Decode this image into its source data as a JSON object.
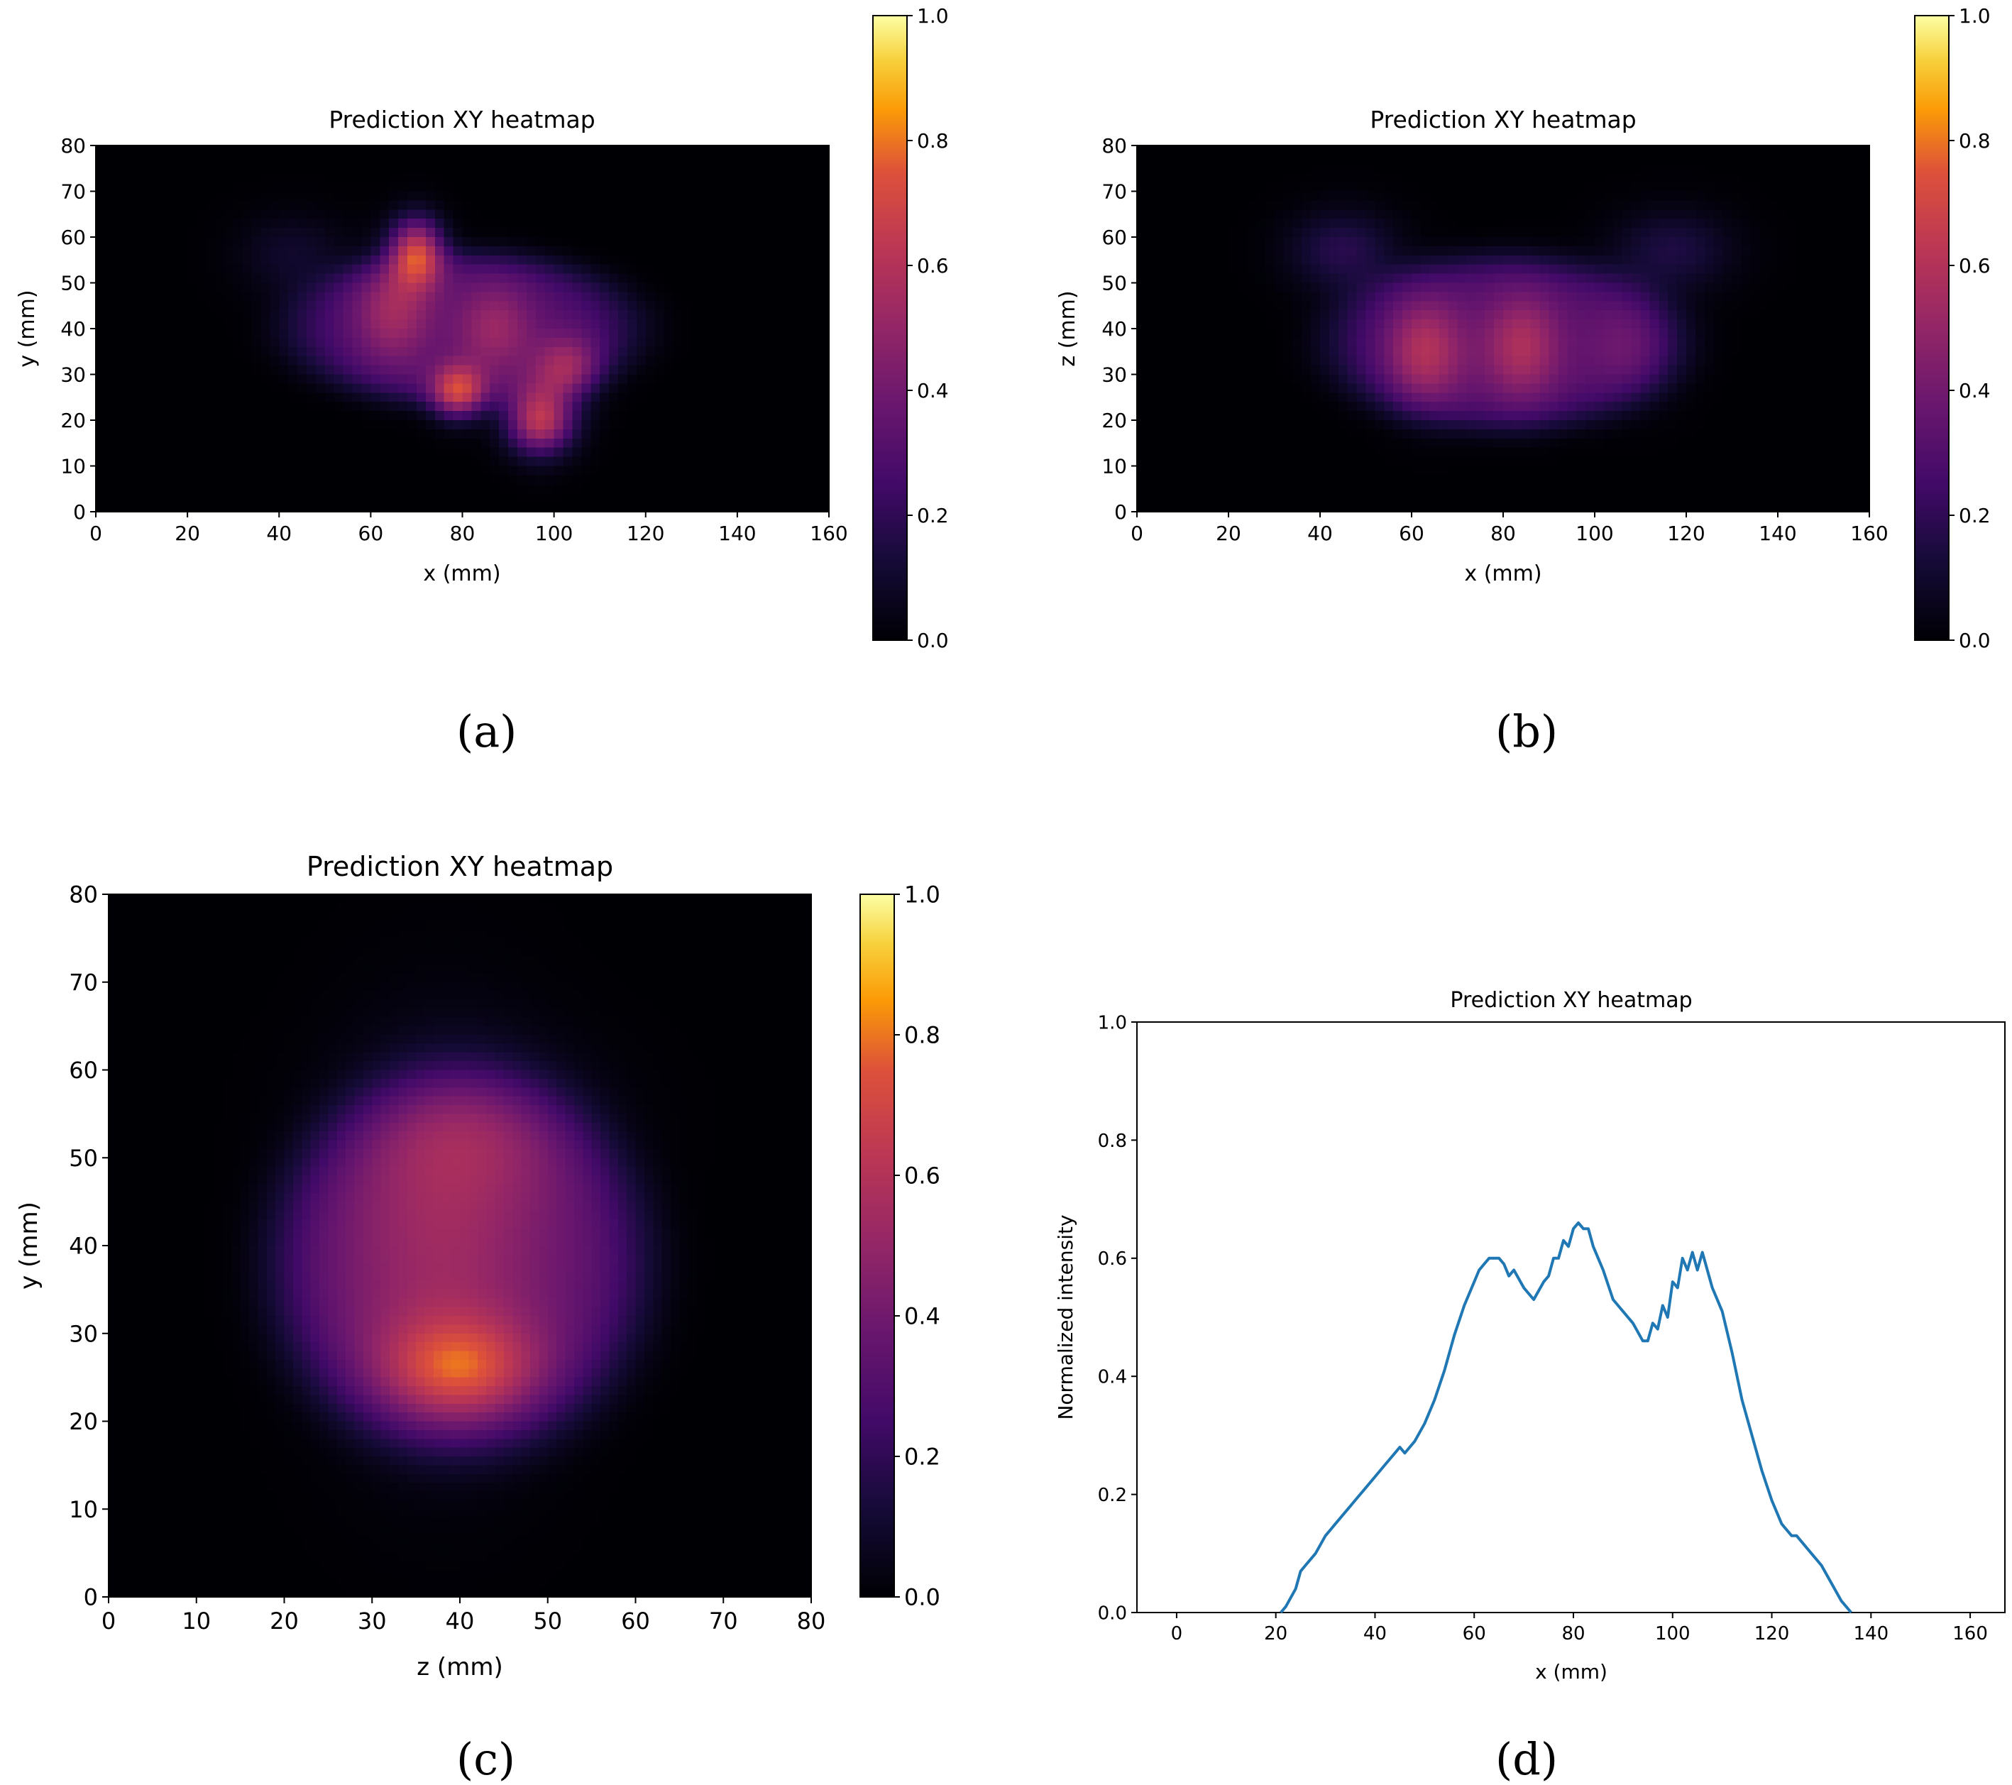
{
  "colorbar": {
    "ticks": [
      "0.0",
      "0.2",
      "0.4",
      "0.6",
      "0.8",
      "1.0"
    ]
  },
  "captions": {
    "a": "(a)",
    "b": "(b)",
    "c": "(c)",
    "d": "(d)"
  },
  "line_color": "#1f77b4",
  "chart_data": [
    {
      "type": "heatmap",
      "panel": "a",
      "title": "Prediction XY heatmap",
      "xlabel": "x (mm)",
      "ylabel": "y (mm)",
      "xlim": [
        0,
        160
      ],
      "ylim": [
        0,
        80
      ],
      "xticks": [
        "0",
        "20",
        "40",
        "60",
        "80",
        "100",
        "120",
        "140",
        "160"
      ],
      "yticks": [
        "0",
        "10",
        "20",
        "30",
        "40",
        "50",
        "60",
        "70",
        "80"
      ],
      "colormap": "inferno",
      "clim": [
        0,
        1
      ],
      "blobs": [
        {
          "x": 80,
          "y": 40,
          "sx": 34,
          "sy": 15,
          "amp": 0.3
        },
        {
          "x": 43,
          "y": 56,
          "sx": 8,
          "sy": 6,
          "amp": 0.1
        },
        {
          "x": 70,
          "y": 57,
          "sx": 4,
          "sy": 5,
          "amp": 0.6
        },
        {
          "x": 65,
          "y": 44,
          "sx": 6,
          "sy": 8,
          "amp": 0.25
        },
        {
          "x": 87,
          "y": 40,
          "sx": 6,
          "sy": 7,
          "amp": 0.22
        },
        {
          "x": 79,
          "y": 26,
          "sx": 4,
          "sy": 4,
          "amp": 0.5
        },
        {
          "x": 97,
          "y": 20,
          "sx": 5,
          "sy": 5,
          "amp": 0.62
        },
        {
          "x": 103,
          "y": 31,
          "sx": 5,
          "sy": 5,
          "amp": 0.3
        }
      ]
    },
    {
      "type": "heatmap",
      "panel": "b",
      "title": "Prediction XY heatmap",
      "xlabel": "x (mm)",
      "ylabel": "z (mm)",
      "xlim": [
        0,
        160
      ],
      "ylim": [
        0,
        80
      ],
      "xticks": [
        "0",
        "20",
        "40",
        "60",
        "80",
        "100",
        "120",
        "140",
        "160"
      ],
      "yticks": [
        "0",
        "10",
        "20",
        "30",
        "40",
        "50",
        "60",
        "70",
        "80"
      ],
      "colormap": "inferno",
      "clim": [
        0,
        1
      ],
      "blobs": [
        {
          "x": 80,
          "y": 37,
          "sx": 34,
          "sy": 17,
          "amp": 0.3
        },
        {
          "x": 45,
          "y": 57,
          "sx": 8,
          "sy": 6,
          "amp": 0.18
        },
        {
          "x": 117,
          "y": 57,
          "sx": 9,
          "sy": 6,
          "amp": 0.15
        },
        {
          "x": 63,
          "y": 35,
          "sx": 6,
          "sy": 8,
          "amp": 0.3
        },
        {
          "x": 84,
          "y": 36,
          "sx": 6,
          "sy": 8,
          "amp": 0.28
        },
        {
          "x": 108,
          "y": 36,
          "sx": 7,
          "sy": 8,
          "amp": 0.12
        }
      ]
    },
    {
      "type": "heatmap",
      "panel": "c",
      "title": "Prediction XY heatmap",
      "xlabel": "z (mm)",
      "ylabel": "y (mm)",
      "xlim": [
        0,
        80
      ],
      "ylim": [
        0,
        80
      ],
      "xticks": [
        "0",
        "10",
        "20",
        "30",
        "40",
        "50",
        "60",
        "70",
        "80"
      ],
      "yticks": [
        "0",
        "10",
        "20",
        "30",
        "40",
        "50",
        "60",
        "70",
        "80"
      ],
      "colormap": "inferno",
      "clim": [
        0,
        1
      ],
      "blobs": [
        {
          "x": 40,
          "y": 38,
          "sx": 19,
          "sy": 19,
          "amp": 0.35
        },
        {
          "x": 38,
          "y": 40,
          "sx": 8,
          "sy": 14,
          "amp": 0.18
        },
        {
          "x": 42,
          "y": 54,
          "sx": 9,
          "sy": 6,
          "amp": 0.12
        },
        {
          "x": 40,
          "y": 26,
          "sx": 6,
          "sy": 4,
          "amp": 0.35
        }
      ]
    },
    {
      "type": "line",
      "panel": "d",
      "title": "Prediction XY heatmap",
      "xlabel": "x (mm)",
      "ylabel": "Normalized intensity",
      "xlim": [
        -8,
        167
      ],
      "ylim": [
        0,
        1.0
      ],
      "xticks": [
        "0",
        "20",
        "40",
        "60",
        "80",
        "100",
        "120",
        "140",
        "160"
      ],
      "yticks": [
        "0.0",
        "0.2",
        "0.4",
        "0.6",
        "0.8",
        "1.0"
      ],
      "series": [
        {
          "name": "intensity",
          "x": [
            21,
            22,
            24,
            25,
            26,
            28,
            30,
            31,
            32,
            34,
            36,
            38,
            40,
            42,
            44,
            45,
            46,
            48,
            50,
            52,
            54,
            55,
            56,
            58,
            60,
            61,
            62,
            63,
            64,
            65,
            66,
            67,
            68,
            70,
            72,
            74,
            75,
            76,
            77,
            78,
            79,
            80,
            81,
            82,
            83,
            84,
            85,
            86,
            88,
            90,
            92,
            94,
            95,
            96,
            97,
            98,
            99,
            100,
            101,
            102,
            103,
            104,
            105,
            106,
            107,
            108,
            110,
            112,
            114,
            116,
            118,
            120,
            122,
            124,
            125,
            126,
            128,
            130,
            132,
            134,
            136
          ],
          "values": [
            0.0,
            0.01,
            0.04,
            0.07,
            0.08,
            0.1,
            0.13,
            0.14,
            0.15,
            0.17,
            0.19,
            0.21,
            0.23,
            0.25,
            0.27,
            0.28,
            0.27,
            0.29,
            0.32,
            0.36,
            0.41,
            0.44,
            0.47,
            0.52,
            0.56,
            0.58,
            0.59,
            0.6,
            0.6,
            0.6,
            0.59,
            0.57,
            0.58,
            0.55,
            0.53,
            0.56,
            0.57,
            0.6,
            0.6,
            0.63,
            0.62,
            0.65,
            0.66,
            0.65,
            0.65,
            0.62,
            0.6,
            0.58,
            0.53,
            0.51,
            0.49,
            0.46,
            0.46,
            0.49,
            0.48,
            0.52,
            0.5,
            0.56,
            0.55,
            0.6,
            0.58,
            0.61,
            0.58,
            0.61,
            0.58,
            0.55,
            0.51,
            0.44,
            0.36,
            0.3,
            0.24,
            0.19,
            0.15,
            0.13,
            0.13,
            0.12,
            0.1,
            0.08,
            0.05,
            0.02,
            0.0
          ]
        }
      ]
    }
  ]
}
